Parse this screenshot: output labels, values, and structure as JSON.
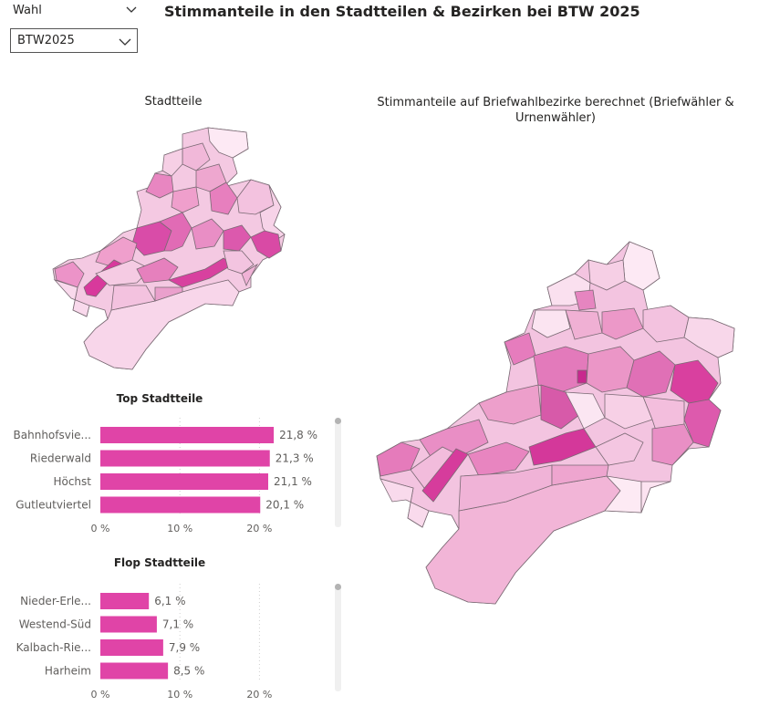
{
  "slicer": {
    "label": "Wahl",
    "selected": "BTW2025"
  },
  "title": "Stimmanteile in den Stadtteilen & Bezirken bei BTW 2025",
  "map_left": {
    "title": "Stadtteile"
  },
  "map_right": {
    "title_line1": "Stimmanteile auf Briefwahlbezirke berechnet (Briefwähler &",
    "title_line2": "Urnenwähler)"
  },
  "colors": {
    "bar": "#e044a7",
    "map_dark": "#d9409f",
    "map_light": "#fbe6f3",
    "border": "#7a6a74"
  },
  "chart_data": [
    {
      "type": "bar",
      "orientation": "horizontal",
      "title": "Top Stadtteile",
      "categories": [
        "Bahnhofsvie...",
        "Riederwald",
        "Höchst",
        "Gutleutviertel"
      ],
      "values": [
        21.8,
        21.3,
        21.1,
        20.1
      ],
      "value_labels": [
        "21,8 %",
        "21,3 %",
        "21,1 %",
        "20,1 %"
      ],
      "xlim": [
        0,
        25
      ],
      "xticks": [
        "0 %",
        "10 %",
        "20 %"
      ],
      "xtick_values": [
        0,
        10,
        20
      ]
    },
    {
      "type": "bar",
      "orientation": "horizontal",
      "title": "Flop Stadtteile",
      "categories": [
        "Nieder-Erle...",
        "Westend-Süd",
        "Kalbach-Rie...",
        "Harheim"
      ],
      "values": [
        6.1,
        7.1,
        7.9,
        8.5
      ],
      "value_labels": [
        "6,1 %",
        "7,1 %",
        "7,9 %",
        "8,5 %"
      ],
      "xlim": [
        0,
        25
      ],
      "xticks": [
        "0 %",
        "10 %",
        "20 %"
      ],
      "xtick_values": [
        0,
        10,
        20
      ]
    }
  ]
}
